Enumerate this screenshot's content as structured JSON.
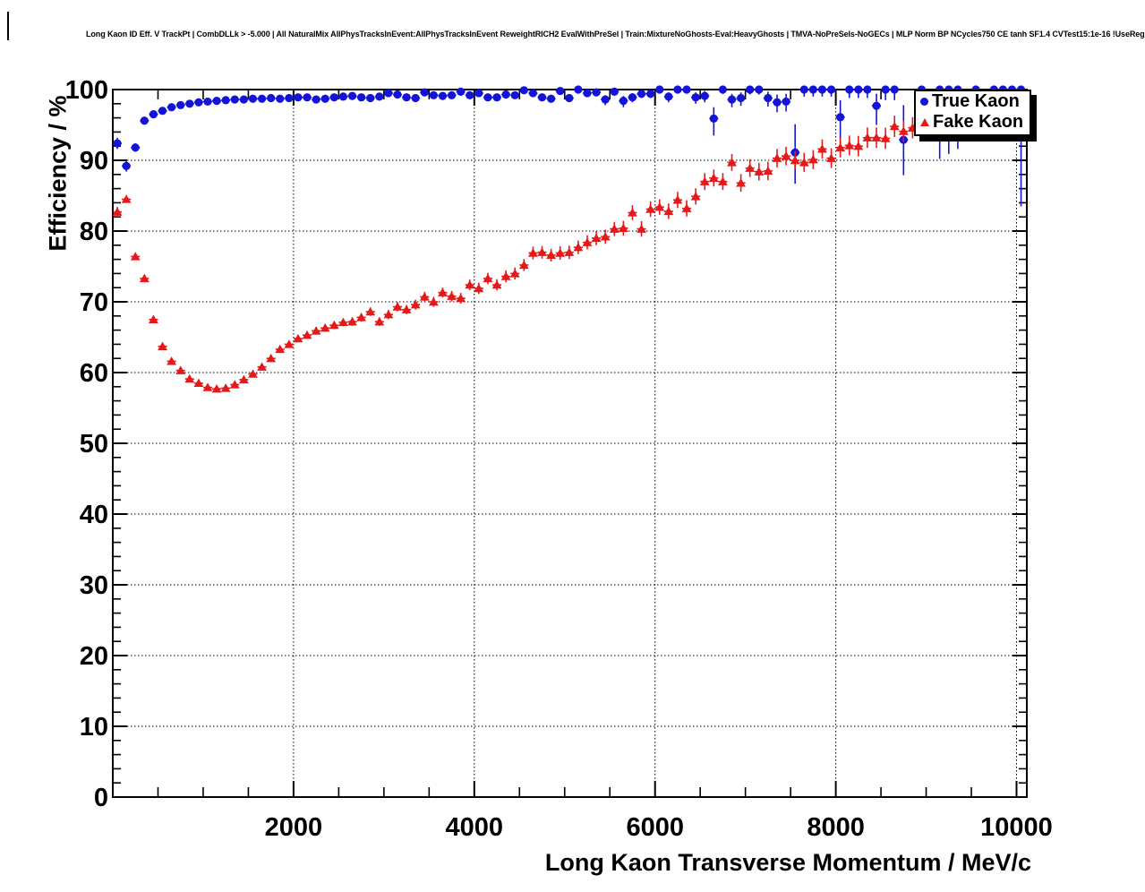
{
  "header": {
    "title": "Long Kaon ID Eff. V TrackPt | CombDLLk > -5.000 | All NaturalMix AllPhysTracksInEvent:AllPhysTracksInEvent ReweightRICH2 EvalWithPreSel | Train:MixtureNoGhosts-Eval:HeavyGhosts | TMVA-NoPreSels-NoGECs | MLP Norm BP NCycles750 CE tanh SF1.4 CVTest15:1e-16 !UseReg"
  },
  "chart_data": {
    "type": "scatter",
    "title": "Long Kaon ID Eff. V TrackPt",
    "xlabel": "Long Kaon Transverse Momentum / MeV/c",
    "ylabel": "Efficiency / %",
    "xlim": [
      0,
      10120
    ],
    "ylim": [
      0,
      100
    ],
    "x_ticks": [
      2000,
      4000,
      6000,
      8000,
      10000
    ],
    "y_ticks": [
      0,
      10,
      20,
      30,
      40,
      50,
      60,
      70,
      80,
      90,
      100
    ],
    "x_minor_step": 500,
    "y_minor_step": 2,
    "grid": true,
    "bin_half_width": 50,
    "colors": {
      "true_kaon": "#1414d8",
      "fake_kaon": "#e41a1a"
    },
    "legend": {
      "position": "top-right",
      "entries": [
        {
          "label": "True Kaon",
          "marker": "circle",
          "color": "#1414d8"
        },
        {
          "label": "Fake Kaon",
          "marker": "triangle",
          "color": "#e41a1a"
        }
      ]
    },
    "series": [
      {
        "name": "True Kaon",
        "marker": "circle",
        "color": "#1414d8",
        "points": [
          [
            50,
            92.4,
            0.8,
            0.8
          ],
          [
            150,
            89.2,
            0.8,
            0.8
          ],
          [
            250,
            91.8,
            0.6,
            0.6
          ],
          [
            350,
            95.6,
            0.5,
            0.5
          ],
          [
            450,
            96.5,
            0.4,
            0.4
          ],
          [
            550,
            97.0,
            0.35,
            0.35
          ],
          [
            650,
            97.5,
            0.3,
            0.3
          ],
          [
            750,
            97.8,
            0.3,
            0.3
          ],
          [
            850,
            98.0,
            0.25,
            0.25
          ],
          [
            950,
            98.2,
            0.25,
            0.25
          ],
          [
            1050,
            98.3,
            0.2,
            0.2
          ],
          [
            1150,
            98.4,
            0.2,
            0.2
          ],
          [
            1250,
            98.5,
            0.2,
            0.2
          ],
          [
            1350,
            98.6,
            0.2,
            0.2
          ],
          [
            1450,
            98.6,
            0.2,
            0.2
          ],
          [
            1550,
            98.7,
            0.2,
            0.2
          ],
          [
            1650,
            98.7,
            0.2,
            0.2
          ],
          [
            1750,
            98.8,
            0.2,
            0.2
          ],
          [
            1850,
            98.7,
            0.2,
            0.2
          ],
          [
            1950,
            98.8,
            0.2,
            0.2
          ],
          [
            2050,
            98.9,
            0.2,
            0.2
          ],
          [
            2150,
            98.9,
            0.2,
            0.2
          ],
          [
            2250,
            98.6,
            0.25,
            0.25
          ],
          [
            2350,
            98.7,
            0.25,
            0.25
          ],
          [
            2450,
            98.9,
            0.25,
            0.25
          ],
          [
            2550,
            99.0,
            0.25,
            0.25
          ],
          [
            2650,
            99.1,
            0.25,
            0.25
          ],
          [
            2750,
            98.9,
            0.3,
            0.3
          ],
          [
            2850,
            98.8,
            0.3,
            0.3
          ],
          [
            2950,
            99.0,
            0.3,
            0.3
          ],
          [
            3050,
            99.5,
            0.25,
            0.25
          ],
          [
            3150,
            99.3,
            0.3,
            0.3
          ],
          [
            3250,
            98.9,
            0.35,
            0.35
          ],
          [
            3350,
            98.8,
            0.35,
            0.35
          ],
          [
            3450,
            99.6,
            0.25,
            0.25
          ],
          [
            3550,
            99.2,
            0.3,
            0.3
          ],
          [
            3650,
            99.1,
            0.35,
            0.35
          ],
          [
            3750,
            99.2,
            0.35,
            0.35
          ],
          [
            3850,
            99.7,
            0.25,
            0.25
          ],
          [
            3950,
            99.2,
            0.35,
            0.35
          ],
          [
            4050,
            99.5,
            0.3,
            0.3
          ],
          [
            4150,
            98.9,
            0.4,
            0.4
          ],
          [
            4250,
            98.9,
            0.4,
            0.4
          ],
          [
            4350,
            99.3,
            0.35,
            0.35
          ],
          [
            4450,
            99.2,
            0.4,
            0.4
          ],
          [
            4550,
            99.9,
            0.15,
            0.1
          ],
          [
            4650,
            99.5,
            0.35,
            0.35
          ],
          [
            4750,
            98.9,
            0.45,
            0.45
          ],
          [
            4850,
            98.7,
            0.5,
            0.5
          ],
          [
            4950,
            99.8,
            0.2,
            0.2
          ],
          [
            5050,
            98.8,
            0.5,
            0.5
          ],
          [
            5150,
            100.0,
            0.3,
            0.0
          ],
          [
            5250,
            99.5,
            0.4,
            0.3
          ],
          [
            5350,
            99.6,
            0.4,
            0.3
          ],
          [
            5450,
            98.6,
            0.8,
            0.6
          ],
          [
            5550,
            99.7,
            0.4,
            0.3
          ],
          [
            5650,
            98.4,
            0.9,
            0.7
          ],
          [
            5750,
            98.9,
            0.7,
            0.6
          ],
          [
            5850,
            99.4,
            0.6,
            0.4
          ],
          [
            5950,
            99.4,
            0.6,
            0.4
          ],
          [
            6050,
            100.0,
            0.5,
            0.0
          ],
          [
            6150,
            99.0,
            0.8,
            0.6
          ],
          [
            6250,
            100.0,
            0.45,
            0.0
          ],
          [
            6350,
            100.0,
            0.45,
            0.0
          ],
          [
            6450,
            98.9,
            0.9,
            0.7
          ],
          [
            6550,
            99.1,
            0.9,
            0.7
          ],
          [
            6650,
            95.9,
            2.4,
            1.6
          ],
          [
            6750,
            100.0,
            0.6,
            0.0
          ],
          [
            6850,
            98.6,
            1.1,
            0.8
          ],
          [
            6950,
            98.8,
            1.1,
            0.8
          ],
          [
            7050,
            100.0,
            0.7,
            0.0
          ],
          [
            7150,
            100.0,
            0.7,
            0.0
          ],
          [
            7250,
            98.8,
            1.2,
            0.9
          ],
          [
            7350,
            98.2,
            1.4,
            1.1
          ],
          [
            7450,
            98.3,
            1.4,
            1.1
          ],
          [
            7550,
            91.1,
            4.4,
            4.0
          ],
          [
            7650,
            100.0,
            1.0,
            0.0
          ],
          [
            7750,
            100.0,
            1.0,
            0.0
          ],
          [
            7850,
            100.0,
            1.0,
            0.0
          ],
          [
            7950,
            100.0,
            1.0,
            0.0
          ],
          [
            8050,
            96.1,
            4.4,
            2.4
          ],
          [
            8150,
            100.0,
            1.2,
            0.0
          ],
          [
            8250,
            100.0,
            1.2,
            0.0
          ],
          [
            8350,
            100.0,
            1.2,
            0.0
          ],
          [
            8450,
            97.7,
            2.7,
            1.7
          ],
          [
            8550,
            100.0,
            1.5,
            0.0
          ],
          [
            8650,
            100.0,
            1.5,
            0.0
          ],
          [
            8750,
            92.9,
            5.0,
            4.9
          ],
          [
            8950,
            100.0,
            6.3,
            0.0
          ],
          [
            9150,
            100.0,
            9.8,
            0.0
          ],
          [
            9250,
            100.0,
            9.1,
            0.0
          ],
          [
            9350,
            100.0,
            8.4,
            0.0
          ],
          [
            9550,
            100.0,
            3.0,
            0.0
          ],
          [
            9750,
            100.0,
            2.2,
            0.0
          ],
          [
            9850,
            100.0,
            2.2,
            0.0
          ],
          [
            9950,
            100.0,
            2.2,
            0.0
          ],
          [
            10050,
            100.0,
            16.5,
            0.0
          ]
        ]
      },
      {
        "name": "Fake Kaon",
        "marker": "triangle",
        "color": "#e41a1a",
        "points": [
          [
            50,
            82.7,
            0.7
          ],
          [
            150,
            84.5,
            0.5
          ],
          [
            250,
            76.4,
            0.5
          ],
          [
            350,
            73.3,
            0.5
          ],
          [
            450,
            67.5,
            0.5
          ],
          [
            550,
            63.7,
            0.5
          ],
          [
            650,
            61.6,
            0.45
          ],
          [
            750,
            60.3,
            0.45
          ],
          [
            850,
            59.1,
            0.45
          ],
          [
            950,
            58.5,
            0.45
          ],
          [
            1050,
            57.9,
            0.45
          ],
          [
            1150,
            57.7,
            0.45
          ],
          [
            1250,
            57.8,
            0.45
          ],
          [
            1350,
            58.3,
            0.45
          ],
          [
            1450,
            59.0,
            0.45
          ],
          [
            1550,
            59.8,
            0.5
          ],
          [
            1650,
            60.8,
            0.5
          ],
          [
            1750,
            62.0,
            0.5
          ],
          [
            1850,
            63.3,
            0.5
          ],
          [
            1950,
            64.0,
            0.5
          ],
          [
            2050,
            64.8,
            0.5
          ],
          [
            2150,
            65.3,
            0.5
          ],
          [
            2250,
            65.9,
            0.55
          ],
          [
            2350,
            66.3,
            0.55
          ],
          [
            2450,
            66.7,
            0.55
          ],
          [
            2550,
            67.1,
            0.55
          ],
          [
            2650,
            67.2,
            0.6
          ],
          [
            2750,
            67.8,
            0.6
          ],
          [
            2850,
            68.6,
            0.6
          ],
          [
            2950,
            67.2,
            0.6
          ],
          [
            3050,
            68.2,
            0.65
          ],
          [
            3150,
            69.3,
            0.65
          ],
          [
            3250,
            68.9,
            0.65
          ],
          [
            3350,
            69.6,
            0.7
          ],
          [
            3450,
            70.7,
            0.7
          ],
          [
            3550,
            70.0,
            0.7
          ],
          [
            3650,
            71.3,
            0.7
          ],
          [
            3750,
            70.8,
            0.75
          ],
          [
            3850,
            70.5,
            0.75
          ],
          [
            3950,
            72.4,
            0.75
          ],
          [
            4050,
            71.9,
            0.8
          ],
          [
            4150,
            73.3,
            0.8
          ],
          [
            4250,
            72.4,
            0.8
          ],
          [
            4350,
            73.6,
            0.85
          ],
          [
            4450,
            74.0,
            0.85
          ],
          [
            4550,
            75.2,
            0.85
          ],
          [
            4650,
            76.9,
            0.9
          ],
          [
            4750,
            77.0,
            0.9
          ],
          [
            4850,
            76.6,
            0.9
          ],
          [
            4950,
            76.9,
            0.95
          ],
          [
            5050,
            77.0,
            0.95
          ],
          [
            5150,
            77.7,
            0.95
          ],
          [
            5250,
            78.4,
            1.0
          ],
          [
            5350,
            79.0,
            1.0
          ],
          [
            5450,
            79.2,
            1.0
          ],
          [
            5550,
            80.3,
            1.0
          ],
          [
            5650,
            80.4,
            1.05
          ],
          [
            5750,
            82.6,
            1.05
          ],
          [
            5850,
            80.3,
            1.1
          ],
          [
            5950,
            83.1,
            1.1
          ],
          [
            6050,
            83.4,
            1.1
          ],
          [
            6150,
            82.8,
            1.1
          ],
          [
            6250,
            84.4,
            1.15
          ],
          [
            6350,
            83.2,
            1.15
          ],
          [
            6450,
            84.9,
            1.15
          ],
          [
            6550,
            87.0,
            1.2
          ],
          [
            6650,
            87.5,
            1.2
          ],
          [
            6750,
            87.0,
            1.2
          ],
          [
            6850,
            89.7,
            1.2
          ],
          [
            6950,
            86.8,
            1.25
          ],
          [
            7050,
            88.9,
            1.25
          ],
          [
            7150,
            88.4,
            1.25
          ],
          [
            7250,
            88.5,
            1.3
          ],
          [
            7350,
            90.3,
            1.3
          ],
          [
            7450,
            90.6,
            1.3
          ],
          [
            7550,
            90.0,
            1.3
          ],
          [
            7650,
            89.7,
            1.35
          ],
          [
            7750,
            90.1,
            1.35
          ],
          [
            7850,
            91.6,
            1.35
          ],
          [
            7950,
            90.3,
            1.4
          ],
          [
            8050,
            91.8,
            1.4
          ],
          [
            8150,
            92.1,
            1.4
          ],
          [
            8250,
            92.0,
            1.45
          ],
          [
            8350,
            93.2,
            1.45
          ],
          [
            8450,
            93.2,
            1.45
          ],
          [
            8550,
            93.1,
            1.5
          ],
          [
            8650,
            94.8,
            1.5
          ],
          [
            8750,
            94.1,
            1.5
          ],
          [
            8850,
            94.6,
            1.5
          ]
        ]
      }
    ]
  }
}
